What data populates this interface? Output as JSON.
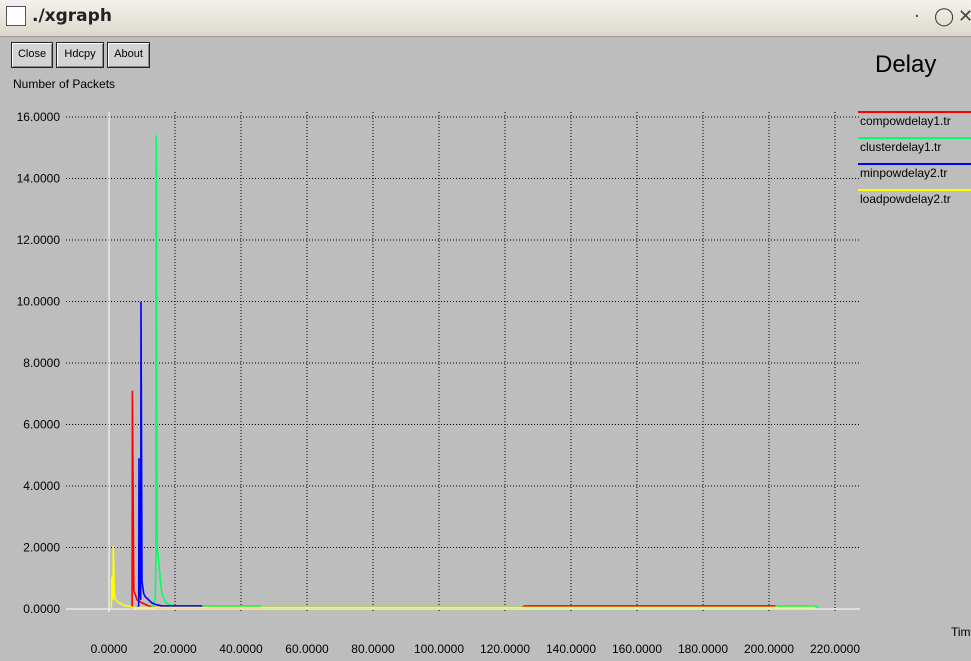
{
  "window": {
    "title": "./xgraph"
  },
  "buttons": {
    "close": "Close",
    "hdcopy": "Hdcpy",
    "about": "About"
  },
  "chart_data": {
    "type": "line",
    "title": "Delay",
    "ylabel": "Number of Packets",
    "xlabel": "Time",
    "xlim": [
      0,
      220
    ],
    "ylim": [
      0,
      16
    ],
    "grid": true,
    "legend_position": "right",
    "x_ticks": [
      "0.0000",
      "20.0000",
      "40.0000",
      "60.0000",
      "80.0000",
      "100.0000",
      "120.0000",
      "140.0000",
      "160.0000",
      "180.0000",
      "200.0000",
      "220.0000"
    ],
    "y_ticks": [
      "0.0000",
      "2.0000",
      "4.0000",
      "6.0000",
      "8.0000",
      "10.0000",
      "12.0000",
      "14.0000",
      "16.0000"
    ],
    "series": [
      {
        "name": "compowdelay1.tr",
        "color": "#ff0000",
        "x": [
          6.5,
          7.0,
          7.1,
          7.5,
          8.5,
          10,
          12,
          14,
          16,
          18,
          20,
          22,
          122,
          125,
          126,
          202
        ],
        "y": [
          0.05,
          0.05,
          7.1,
          0.6,
          0.3,
          0.2,
          0.1,
          0.05,
          0.05,
          0.05,
          0.05,
          0.05,
          0.05,
          0.05,
          0.1,
          0.1
        ]
      },
      {
        "name": "clusterdelay1.tr",
        "color": "#00ff66",
        "x": [
          13,
          14,
          14.2,
          14.3,
          14.6,
          15,
          15.5,
          16,
          17,
          18,
          20,
          25,
          30,
          31,
          46,
          46.2,
          96,
          124,
          202,
          202.5,
          214,
          215
        ],
        "y": [
          0.05,
          0.3,
          1.7,
          15.4,
          2.0,
          1.6,
          1.0,
          0.5,
          0.25,
          0.15,
          0.1,
          0.1,
          0.1,
          0.1,
          0.1,
          0.05,
          0.05,
          0.05,
          0.05,
          0.1,
          0.1,
          0.05
        ]
      },
      {
        "name": "minpowdelay2.tr",
        "color": "#0000ff",
        "x": [
          8.5,
          9.0,
          9.1,
          9.3,
          9.6,
          9.7,
          10,
          10.5,
          11,
          12,
          13,
          14,
          16,
          20,
          25,
          28,
          28.2
        ],
        "y": [
          0.05,
          0.1,
          4.9,
          0.6,
          0.3,
          10.0,
          0.9,
          0.5,
          0.4,
          0.3,
          0.2,
          0.15,
          0.1,
          0.1,
          0.1,
          0.1,
          0.05
        ]
      },
      {
        "name": "loadpowdelay2.tr",
        "color": "#ffff00",
        "x": [
          0.7,
          0.8,
          0.85,
          1.0,
          1.2,
          1.3,
          1.6,
          2,
          3,
          4,
          5,
          6,
          7,
          8,
          9,
          10,
          15,
          30,
          46,
          80,
          122,
          202,
          214
        ],
        "y": [
          0.05,
          0.3,
          1.05,
          0.5,
          0.3,
          2.05,
          0.5,
          0.3,
          0.2,
          0.15,
          0.1,
          0.1,
          0.05,
          0.05,
          0.05,
          0.05,
          0.05,
          0.05,
          0.05,
          0.05,
          0.05,
          0.05,
          0.05
        ]
      }
    ]
  }
}
